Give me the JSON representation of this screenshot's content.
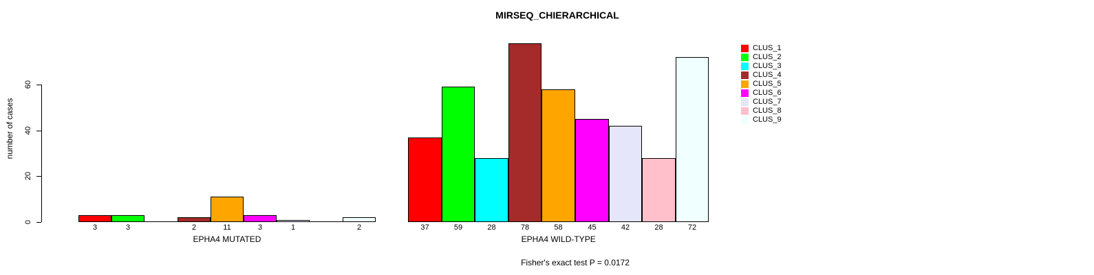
{
  "chart_data": {
    "type": "bar",
    "title": "MIRSEQ_CHIERARCHICAL",
    "ylabel": "number of cases",
    "xlabel": "",
    "categories": [
      "CLUS_1",
      "CLUS_2",
      "CLUS_3",
      "CLUS_4",
      "CLUS_5",
      "CLUS_6",
      "CLUS_7",
      "CLUS_8",
      "CLUS_9"
    ],
    "colors": [
      "#FF0000",
      "#00FF00",
      "#00FFFF",
      "#A52A2A",
      "#FFA500",
      "#FF00FF",
      "#E6E6FA",
      "#FFC0CB",
      "#F0FFFF"
    ],
    "series": [
      {
        "name": "EPHA4 MUTATED",
        "values": [
          3,
          3,
          0,
          2,
          11,
          3,
          1,
          0,
          2
        ]
      },
      {
        "name": "EPHA4 WILD-TYPE",
        "values": [
          37,
          59,
          28,
          78,
          58,
          45,
          42,
          28,
          72
        ]
      }
    ],
    "yticks": [
      0,
      20,
      40,
      60
    ],
    "ylim": [
      0,
      80
    ],
    "grid": false,
    "legend_position": "top-right",
    "bar_border_color": "#000000",
    "annotation": "Fisher's exact test P = 0.0172"
  }
}
